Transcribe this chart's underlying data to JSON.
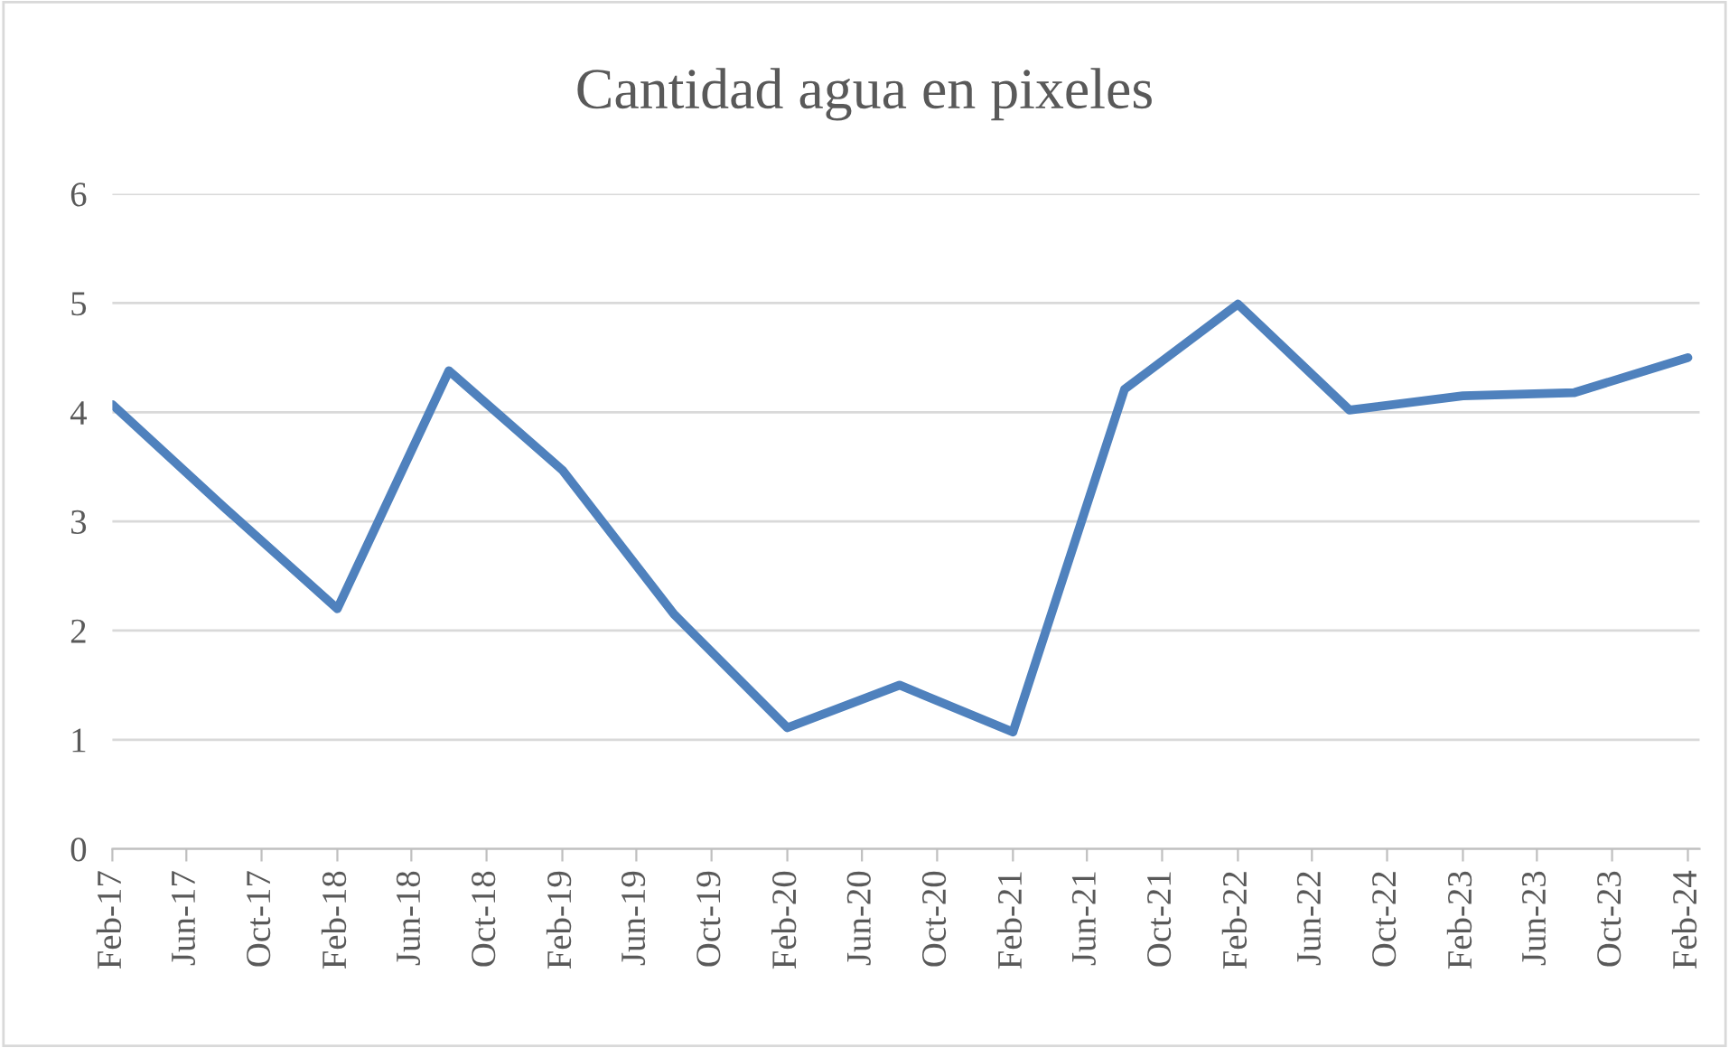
{
  "chart_data": {
    "type": "line",
    "title": "Cantidad agua en pixeles",
    "x": [
      "2017-02",
      "2017-08",
      "2018-02",
      "2018-08",
      "2019-02",
      "2019-08",
      "2020-02",
      "2020-08",
      "2021-02",
      "2021-08",
      "2022-02",
      "2022-08",
      "2023-02",
      "2023-08",
      "2024-02"
    ],
    "series": [
      {
        "color": "#4f81bd",
        "values": [
          4.07,
          3.13,
          2.2,
          4.38,
          3.47,
          2.15,
          1.11,
          1.5,
          1.07,
          4.21,
          4.99,
          4.02,
          4.15,
          4.18,
          4.5
        ]
      }
    ],
    "ylim": [
      0,
      6
    ],
    "yticks": [
      0,
      1,
      2,
      3,
      4,
      5,
      6
    ],
    "xlim": [
      "2017-02",
      "2024-02-20"
    ],
    "xticks": [
      {
        "value": "2017-02",
        "label": "Feb-17"
      },
      {
        "value": "2017-06",
        "label": "Jun-17"
      },
      {
        "value": "2017-10",
        "label": "Oct-17"
      },
      {
        "value": "2018-02",
        "label": "Feb-18"
      },
      {
        "value": "2018-06",
        "label": "Jun-18"
      },
      {
        "value": "2018-10",
        "label": "Oct-18"
      },
      {
        "value": "2019-02",
        "label": "Feb-19"
      },
      {
        "value": "2019-06",
        "label": "Jun-19"
      },
      {
        "value": "2019-10",
        "label": "Oct-19"
      },
      {
        "value": "2020-02",
        "label": "Feb-20"
      },
      {
        "value": "2020-06",
        "label": "Jun-20"
      },
      {
        "value": "2020-10",
        "label": "Oct-20"
      },
      {
        "value": "2021-02",
        "label": "Feb-21"
      },
      {
        "value": "2021-06",
        "label": "Jun-21"
      },
      {
        "value": "2021-10",
        "label": "Oct-21"
      },
      {
        "value": "2022-02",
        "label": "Feb-22"
      },
      {
        "value": "2022-06",
        "label": "Jun-22"
      },
      {
        "value": "2022-10",
        "label": "Oct-22"
      },
      {
        "value": "2023-02",
        "label": "Feb-23"
      },
      {
        "value": "2023-06",
        "label": "Jun-23"
      },
      {
        "value": "2023-10",
        "label": "Oct-23"
      },
      {
        "value": "2024-02",
        "label": "Feb-24"
      }
    ],
    "grid": "y",
    "line_style": "solid"
  }
}
